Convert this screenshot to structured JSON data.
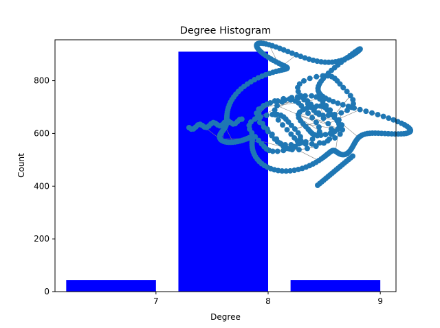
{
  "chart_data": {
    "type": "bar",
    "title": "Degree Histogram",
    "xlabel": "Degree",
    "ylabel": "Count",
    "categories": [
      7,
      8,
      9
    ],
    "values": [
      44,
      910,
      44
    ],
    "xlim": [
      6.1,
      9.14
    ],
    "ylim": [
      0,
      955
    ],
    "xticks": [
      7,
      8,
      9
    ],
    "yticks": [
      0,
      200,
      400,
      600,
      800
    ],
    "bar_width": 0.8,
    "bar_color": "#0000ff",
    "grid": false,
    "inset": {
      "type": "network-graph",
      "description_visible": "node-link graph drawing overlaid on the upper right of the plot",
      "node_color": "#1f77b4",
      "edge_color": "#808080"
    }
  }
}
